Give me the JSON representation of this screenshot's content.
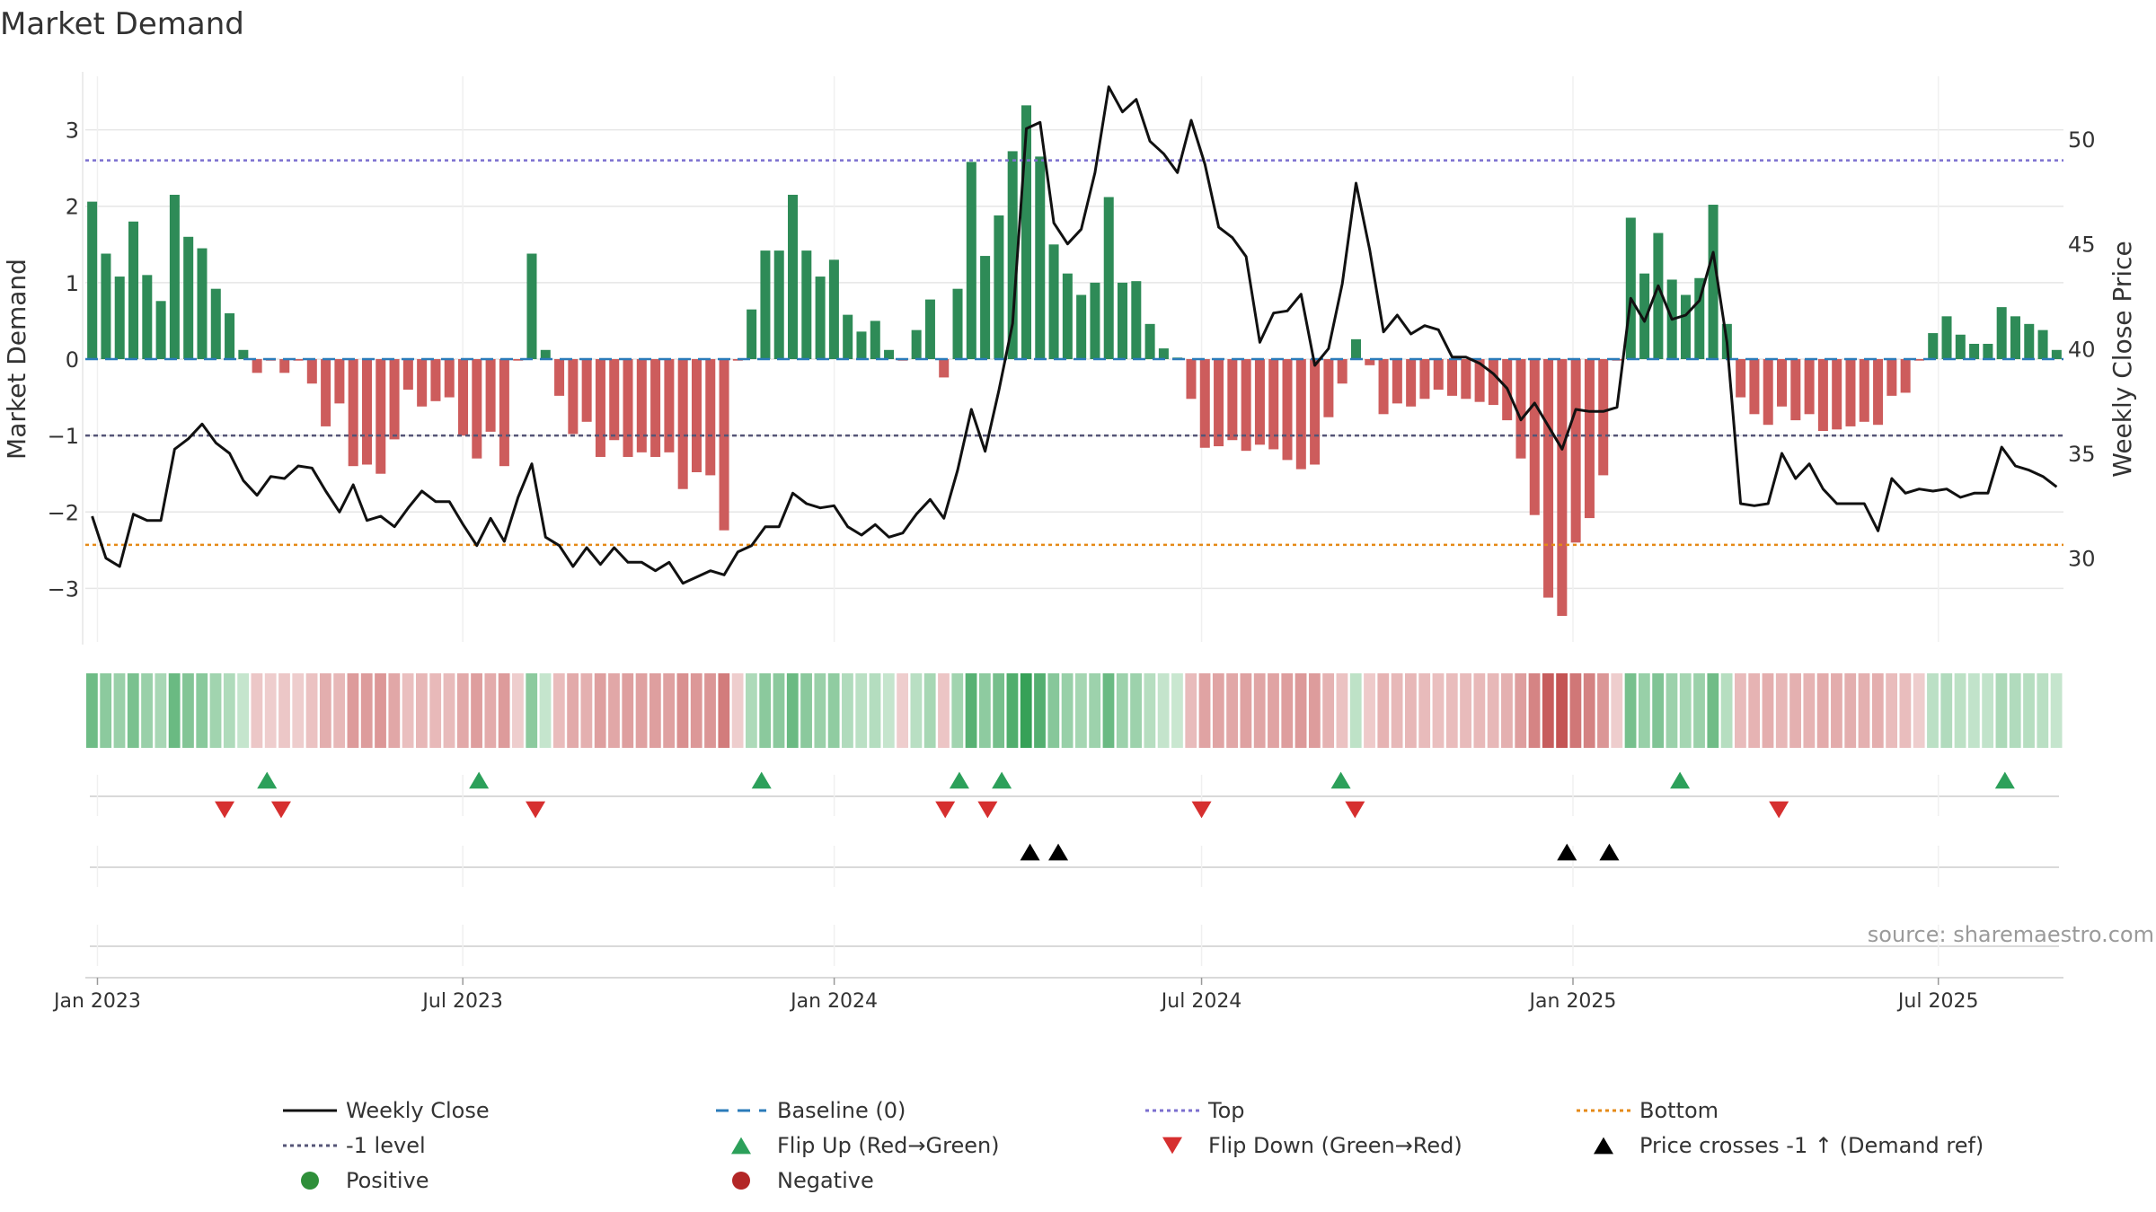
{
  "chart_data": {
    "type": "bar+line",
    "title": "Market Demand",
    "ylabel_left": "Market Demand",
    "ylabel_right": "Weekly Close Price",
    "source": "source: sharemaestro.com",
    "ylim_left": [
      -3.7,
      3.7
    ],
    "ylim_right": [
      26,
      53
    ],
    "yticks_left": [
      3,
      2,
      1,
      0,
      -1,
      -2,
      -3
    ],
    "yticks_left_labels": [
      "3",
      "2",
      "1",
      "0",
      "−1",
      "−2",
      "−3"
    ],
    "yticks_right": [
      50,
      45,
      40,
      35,
      30
    ],
    "x_start_date": "2022-12-26",
    "x_end_date": "2025-09-01",
    "x_ticks": [
      {
        "date": "2023-01-01",
        "label": "Jan 2023"
      },
      {
        "date": "2023-07-01",
        "label": "Jul 2023"
      },
      {
        "date": "2024-01-01",
        "label": "Jan 2024"
      },
      {
        "date": "2024-07-01",
        "label": "Jul 2024"
      },
      {
        "date": "2025-01-01",
        "label": "Jan 2025"
      },
      {
        "date": "2025-07-01",
        "label": "Jul 2025"
      }
    ],
    "levels": {
      "top": 2.6,
      "bottom": -2.43,
      "minus_one": -1,
      "baseline": 0
    },
    "demand": [
      2.06,
      1.38,
      1.08,
      1.8,
      1.1,
      0.76,
      2.15,
      1.6,
      1.45,
      0.92,
      0.6,
      0.12,
      -0.18,
      -0.02,
      -0.18,
      -0.02,
      -0.32,
      -0.88,
      -0.58,
      -1.4,
      -1.38,
      -1.5,
      -1.05,
      -0.4,
      -0.62,
      -0.55,
      -0.5,
      -1.0,
      -1.3,
      -0.95,
      -1.4,
      -0.02,
      1.38,
      0.12,
      -0.48,
      -0.98,
      -0.82,
      -1.28,
      -1.06,
      -1.28,
      -1.22,
      -1.28,
      -1.22,
      -1.7,
      -1.48,
      -1.52,
      -2.24,
      -0.02,
      0.65,
      1.42,
      1.42,
      2.15,
      1.42,
      1.08,
      1.3,
      0.58,
      0.36,
      0.5,
      0.12,
      -0.02,
      0.38,
      0.78,
      -0.24,
      0.92,
      2.58,
      1.35,
      1.88,
      2.72,
      3.32,
      2.65,
      1.5,
      1.12,
      0.84,
      1.0,
      2.12,
      1.0,
      1.02,
      0.46,
      0.14,
      0.02,
      -0.52,
      -1.16,
      -1.14,
      -1.06,
      -1.2,
      -1.12,
      -1.18,
      -1.32,
      -1.44,
      -1.38,
      -0.76,
      -0.32,
      0.26,
      -0.08,
      -0.72,
      -0.58,
      -0.62,
      -0.52,
      -0.4,
      -0.48,
      -0.52,
      -0.56,
      -0.6,
      -0.8,
      -1.3,
      -2.04,
      -3.12,
      -3.36,
      -2.4,
      -2.08,
      -1.52,
      -0.02,
      1.85,
      1.12,
      1.65,
      1.04,
      0.84,
      1.06,
      2.02,
      0.46,
      -0.5,
      -0.72,
      -0.86,
      -0.62,
      -0.8,
      -0.72,
      -0.94,
      -0.92,
      -0.88,
      -0.82,
      -0.86,
      -0.48,
      -0.44,
      -0.02,
      0.34,
      0.56,
      0.32,
      0.2,
      0.2,
      0.68,
      0.56,
      0.46,
      0.38,
      0.12
    ],
    "weekly_close": [
      32.0,
      30.0,
      29.6,
      32.1,
      31.8,
      31.8,
      35.2,
      35.7,
      36.4,
      35.5,
      35.0,
      33.7,
      33.0,
      33.9,
      33.8,
      34.4,
      34.3,
      33.2,
      32.2,
      33.5,
      31.8,
      32.0,
      31.5,
      32.4,
      33.2,
      32.7,
      32.7,
      31.6,
      30.6,
      31.9,
      30.8,
      32.9,
      34.5,
      31.0,
      30.6,
      29.6,
      30.5,
      29.7,
      30.5,
      29.8,
      29.8,
      29.4,
      29.8,
      28.8,
      29.1,
      29.4,
      29.2,
      30.3,
      30.6,
      31.5,
      31.5,
      33.1,
      32.6,
      32.4,
      32.5,
      31.5,
      31.1,
      31.6,
      31.0,
      31.2,
      32.1,
      32.8,
      31.9,
      34.2,
      37.1,
      35.1,
      38.0,
      41.2,
      50.5,
      50.8,
      46.0,
      45.0,
      45.7,
      48.4,
      52.5,
      51.3,
      51.9,
      49.9,
      49.3,
      48.4,
      50.9,
      48.8,
      45.8,
      45.3,
      44.4,
      40.3,
      41.7,
      41.8,
      42.6,
      39.2,
      40.0,
      43.1,
      47.9,
      44.7,
      40.8,
      41.6,
      40.7,
      41.1,
      40.9,
      39.6,
      39.6,
      39.3,
      38.8,
      38.1,
      36.6,
      37.4,
      36.3,
      35.2,
      37.1,
      37.0,
      37.0,
      37.2,
      42.4,
      41.3,
      43.0,
      41.4,
      41.6,
      42.3,
      44.6,
      40.3,
      32.6,
      32.5,
      32.6,
      35.0,
      33.8,
      34.5,
      33.3,
      32.6,
      32.6,
      32.6,
      31.3,
      33.8,
      33.1,
      33.3,
      33.2,
      33.3,
      32.9,
      33.1,
      33.1,
      35.3,
      34.4,
      34.2,
      33.9,
      33.4
    ],
    "flip_up": [
      "2023-03-26",
      "2023-07-09",
      "2023-11-26",
      "2024-03-03",
      "2024-03-24",
      "2024-09-08",
      "2025-02-23",
      "2025-08-03"
    ],
    "flip_down": [
      "2023-03-05",
      "2023-04-02",
      "2023-08-06",
      "2024-02-25",
      "2024-03-17",
      "2024-07-01",
      "2024-09-15",
      "2025-04-13"
    ],
    "price_crosses": [
      "2024-04-07",
      "2024-04-21",
      "2024-12-29",
      "2025-01-19"
    ],
    "legend": [
      {
        "label": "Weekly Close",
        "kind": "line",
        "color": "#111111"
      },
      {
        "label": "Baseline (0)",
        "kind": "dash",
        "color": "#2b7bb9"
      },
      {
        "label": "Top",
        "kind": "dot",
        "color": "#7b6fcf"
      },
      {
        "label": "Bottom",
        "kind": "dot",
        "color": "#e58a17"
      },
      {
        "label": "-1 level",
        "kind": "dot",
        "color": "#555577"
      },
      {
        "label": "Flip Up (Red→Green)",
        "kind": "tri-up",
        "color": "#2ca05a"
      },
      {
        "label": "Flip Down (Green→Red)",
        "kind": "tri-down",
        "color": "#d62f2f"
      },
      {
        "label": "Price crosses -1 ↑ (Demand ref)",
        "kind": "tri-up",
        "color": "#000000"
      },
      {
        "label": "Positive",
        "kind": "circle",
        "color": "#2f8f3a"
      },
      {
        "label": "Negative",
        "kind": "circle",
        "color": "#b32626"
      }
    ],
    "colors": {
      "positive_bar": "#2e8b57",
      "negative_bar": "#cd5c5c",
      "price_line": "#111111",
      "baseline": "#2b7bb9",
      "top": "#7b6fcf",
      "bottom": "#e58a17",
      "minus_one": "#555577",
      "grid": "#e6e6e6"
    }
  }
}
